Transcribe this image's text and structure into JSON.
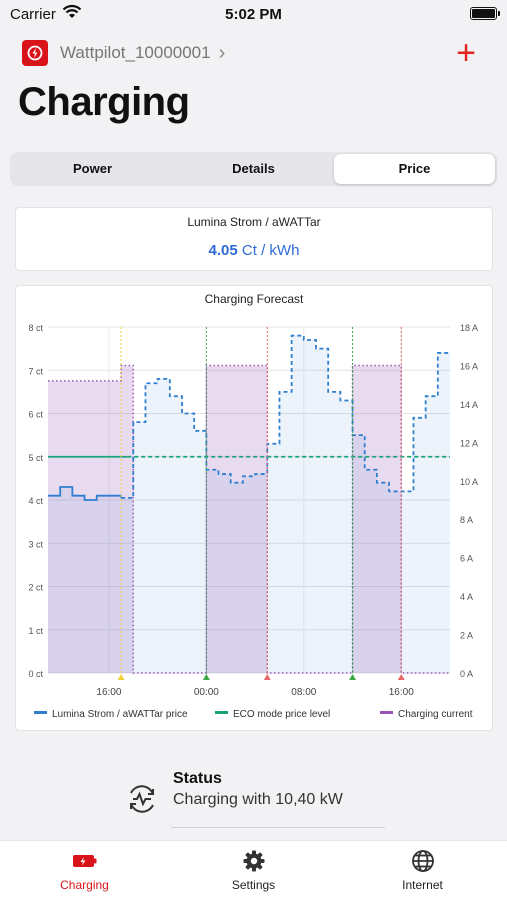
{
  "status_bar": {
    "carrier": "Carrier",
    "time": "5:02 PM"
  },
  "header": {
    "device_name": "Wattpilot_10000001",
    "title": "Charging"
  },
  "segments": [
    {
      "label": "Power",
      "active": false
    },
    {
      "label": "Details",
      "active": false
    },
    {
      "label": "Price",
      "active": true
    }
  ],
  "price_card": {
    "provider": "Lumina Strom / aWATTar",
    "value": "4.05",
    "unit": "Ct / kWh"
  },
  "chart_data": {
    "type": "line",
    "title": "Charging Forecast",
    "y_left": {
      "ticks": [
        "0 ct",
        "1 ct",
        "2 ct",
        "3 ct",
        "4 ct",
        "5 ct",
        "6 ct",
        "7 ct",
        "8 ct"
      ],
      "range": [
        0,
        8
      ],
      "unit": "ct"
    },
    "y_right": {
      "ticks": [
        "0 A",
        "2 A",
        "4 A",
        "6 A",
        "8 A",
        "10 A",
        "12 A",
        "14 A",
        "16 A",
        "18 A"
      ],
      "range": [
        0,
        18
      ],
      "unit": "A"
    },
    "x_ticks": [
      "16:00",
      "00:00",
      "08:00",
      "16:00"
    ],
    "x_tick_hours": [
      16,
      24,
      32,
      40
    ],
    "x_range_hours": [
      11,
      44
    ],
    "eco_level": 5.0,
    "series": [
      {
        "name": "Lumina Strom / aWATTar price",
        "color": "#2f7fd0",
        "axis": "left",
        "actual_until_hour": 17.5,
        "steps": [
          [
            11,
            4.1
          ],
          [
            12,
            4.3
          ],
          [
            13,
            4.1
          ],
          [
            14,
            4.0
          ],
          [
            15,
            4.1
          ],
          [
            16,
            4.1
          ],
          [
            17,
            4.05
          ],
          [
            18,
            5.8
          ],
          [
            19,
            6.7
          ],
          [
            20,
            6.8
          ],
          [
            21,
            6.4
          ],
          [
            22,
            6.0
          ],
          [
            23,
            5.6
          ],
          [
            24,
            4.7
          ],
          [
            25,
            4.6
          ],
          [
            26,
            4.4
          ],
          [
            27,
            4.55
          ],
          [
            28,
            4.6
          ],
          [
            29,
            5.3
          ],
          [
            30,
            6.5
          ],
          [
            31,
            7.8
          ],
          [
            32,
            7.7
          ],
          [
            33,
            7.5
          ],
          [
            34,
            6.5
          ],
          [
            35,
            6.3
          ],
          [
            36,
            5.5
          ],
          [
            37,
            4.7
          ],
          [
            38,
            4.4
          ],
          [
            39,
            4.2
          ],
          [
            40,
            4.2
          ],
          [
            41,
            5.9
          ],
          [
            42,
            6.4
          ],
          [
            43,
            7.4
          ]
        ],
        "end_hour": 44
      },
      {
        "name": "ECO mode price level",
        "color": "#1aa37a",
        "axis": "left"
      },
      {
        "name": "Charging current",
        "color": "#9a55b6",
        "axis": "right",
        "steps": [
          [
            11,
            15.2
          ],
          [
            17,
            16.0
          ],
          [
            18,
            0
          ],
          [
            24,
            16.0
          ],
          [
            29,
            0
          ],
          [
            36,
            16.0
          ],
          [
            40,
            0
          ]
        ],
        "end_hour": 44
      }
    ],
    "event_lines": [
      {
        "hour": 17.0,
        "color": "#f2d33b"
      },
      {
        "hour": 24.0,
        "color": "#3ba94a"
      },
      {
        "hour": 29.0,
        "color": "#e8686a"
      },
      {
        "hour": 36.0,
        "color": "#3ba94a"
      },
      {
        "hour": 40.0,
        "color": "#e8686a"
      }
    ],
    "legend_position": "bottom",
    "grid": true
  },
  "status": {
    "title": "Status",
    "text": "Charging with 10,40 kW"
  },
  "tab_bar": [
    {
      "label": "Charging",
      "icon": "battery-charging-icon",
      "active": true
    },
    {
      "label": "Settings",
      "icon": "gear-icon",
      "active": false
    },
    {
      "label": "Internet",
      "icon": "globe-icon",
      "active": false
    }
  ]
}
